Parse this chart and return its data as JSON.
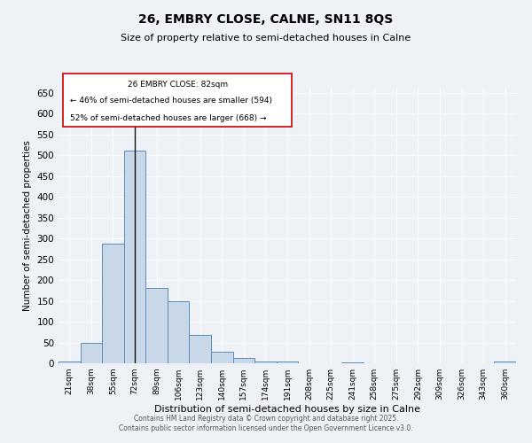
{
  "title_line1": "26, EMBRY CLOSE, CALNE, SN11 8QS",
  "title_line2": "Size of property relative to semi-detached houses in Calne",
  "xlabel": "Distribution of semi-detached houses by size in Calne",
  "ylabel": "Number of semi-detached properties",
  "categories": [
    "21sqm",
    "38sqm",
    "55sqm",
    "72sqm",
    "89sqm",
    "106sqm",
    "123sqm",
    "140sqm",
    "157sqm",
    "174sqm",
    "191sqm",
    "208sqm",
    "225sqm",
    "241sqm",
    "258sqm",
    "275sqm",
    "292sqm",
    "309sqm",
    "326sqm",
    "343sqm",
    "360sqm"
  ],
  "values": [
    5,
    50,
    287,
    511,
    182,
    150,
    68,
    27,
    13,
    5,
    5,
    0,
    0,
    3,
    0,
    0,
    0,
    0,
    0,
    0,
    5
  ],
  "bar_color": "#c8d8e8",
  "bar_edge_color": "#5b8db8",
  "highlight_index": 3,
  "highlight_line_color": "#111111",
  "annotation_box_color": "#cc0000",
  "annotation_text_line1": "26 EMBRY CLOSE: 82sqm",
  "annotation_text_line2": "← 46% of semi-detached houses are smaller (594)",
  "annotation_text_line3": "52% of semi-detached houses are larger (668) →",
  "ylim": [
    0,
    660
  ],
  "yticks": [
    0,
    50,
    100,
    150,
    200,
    250,
    300,
    350,
    400,
    450,
    500,
    550,
    600,
    650
  ],
  "background_color": "#eef2f7",
  "grid_color": "#ffffff",
  "footer_line1": "Contains HM Land Registry data © Crown copyright and database right 2025.",
  "footer_line2": "Contains public sector information licensed under the Open Government Licence v3.0."
}
